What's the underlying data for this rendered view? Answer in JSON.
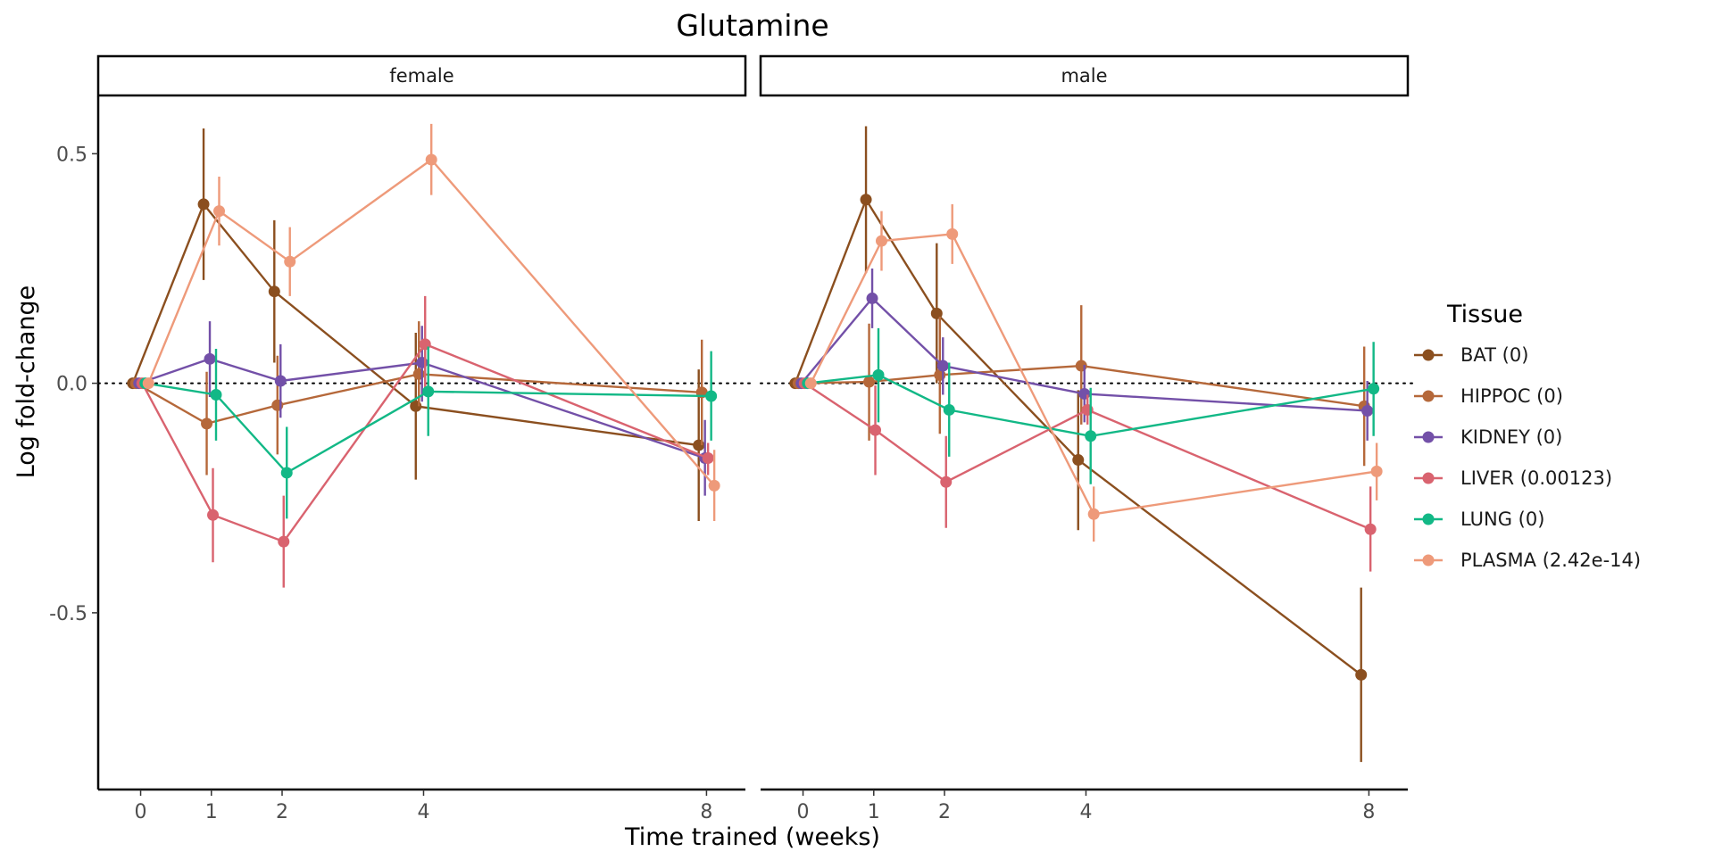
{
  "chart_data": {
    "type": "line",
    "title": "Glutamine",
    "xlabel": "Time trained (weeks)",
    "ylabel": "Log fold-change",
    "x_ticks": [
      0,
      1,
      2,
      4,
      8
    ],
    "y_ticks": [
      0.5,
      0.0,
      -0.5
    ],
    "y_tick_labels": [
      "0.5",
      "0.0",
      "-0.5"
    ],
    "ylim": [
      -0.885,
      0.625
    ],
    "xlim": [
      -0.6,
      8.55
    ],
    "reference_line": 0,
    "grid": false,
    "legend_title": "Tissue",
    "legend_position": "right",
    "facets": [
      {
        "label": "female",
        "series": [
          {
            "name": "BAT (0)",
            "color": "#8B4F1F",
            "x": [
              0,
              1,
              2,
              4,
              8
            ],
            "y": [
              0,
              0.39,
              0.2,
              -0.05,
              -0.135
            ],
            "lower": [
              0,
              0.225,
              0.045,
              -0.21,
              -0.3
            ],
            "upper": [
              0,
              0.555,
              0.355,
              0.11,
              0.03
            ]
          },
          {
            "name": "HIPPOC (0)",
            "color": "#B5683A",
            "x": [
              0,
              1,
              2,
              4,
              8
            ],
            "y": [
              0,
              -0.088,
              -0.048,
              0.02,
              -0.02
            ],
            "lower": [
              0,
              -0.2,
              -0.155,
              -0.05,
              -0.135
            ],
            "upper": [
              0,
              0.025,
              0.06,
              0.135,
              0.095
            ]
          },
          {
            "name": "KIDNEY (0)",
            "color": "#7350A8",
            "x": [
              0,
              1,
              2,
              4,
              8
            ],
            "y": [
              0,
              0.053,
              0.005,
              0.045,
              -0.163
            ],
            "lower": [
              0,
              -0.03,
              -0.075,
              -0.04,
              -0.245
            ],
            "upper": [
              0,
              0.135,
              0.085,
              0.125,
              -0.08
            ]
          },
          {
            "name": "LIVER (0.00123)",
            "color": "#D9636F",
            "x": [
              0,
              1,
              2,
              4,
              8
            ],
            "y": [
              0,
              -0.287,
              -0.345,
              0.085,
              -0.163
            ],
            "lower": [
              0,
              -0.39,
              -0.445,
              -0.02,
              -0.2
            ],
            "upper": [
              0,
              -0.185,
              -0.245,
              0.19,
              -0.13
            ]
          },
          {
            "name": "LUNG (0)",
            "color": "#12B886",
            "x": [
              0,
              1,
              2,
              4,
              8
            ],
            "y": [
              0,
              -0.025,
              -0.195,
              -0.018,
              -0.028
            ],
            "lower": [
              0,
              -0.125,
              -0.295,
              -0.115,
              -0.125
            ],
            "upper": [
              0,
              0.075,
              -0.095,
              0.08,
              0.07
            ]
          },
          {
            "name": "PLASMA (2.42e-14)",
            "color": "#EE9A7A",
            "x": [
              0,
              1,
              2,
              4,
              8
            ],
            "y": [
              0,
              0.375,
              0.265,
              0.487,
              -0.223
            ],
            "lower": [
              0,
              0.3,
              0.19,
              0.41,
              -0.3
            ],
            "upper": [
              0,
              0.45,
              0.34,
              0.565,
              -0.145
            ]
          }
        ]
      },
      {
        "label": "male",
        "series": [
          {
            "name": "BAT (0)",
            "color": "#8B4F1F",
            "x": [
              0,
              1,
              2,
              4,
              8
            ],
            "y": [
              0,
              0.4,
              0.152,
              -0.167,
              -0.635
            ],
            "lower": [
              0,
              0.24,
              0.0,
              -0.32,
              -0.825
            ],
            "upper": [
              0,
              0.56,
              0.305,
              -0.015,
              -0.445
            ]
          },
          {
            "name": "HIPPOC (0)",
            "color": "#B5683A",
            "x": [
              0,
              1,
              2,
              4,
              8
            ],
            "y": [
              0,
              0.003,
              0.018,
              0.038,
              -0.05
            ],
            "lower": [
              0,
              -0.125,
              -0.11,
              -0.09,
              -0.18
            ],
            "upper": [
              0,
              0.13,
              0.145,
              0.17,
              0.08
            ]
          },
          {
            "name": "KIDNEY (0)",
            "color": "#7350A8",
            "x": [
              0,
              1,
              2,
              4,
              8
            ],
            "y": [
              0,
              0.185,
              0.038,
              -0.023,
              -0.06
            ],
            "lower": [
              0,
              0.12,
              -0.025,
              -0.085,
              -0.125
            ],
            "upper": [
              0,
              0.25,
              0.1,
              0.04,
              0.005
            ]
          },
          {
            "name": "LIVER (0.00123)",
            "color": "#D9636F",
            "x": [
              0,
              1,
              2,
              4,
              8
            ],
            "y": [
              0,
              -0.102,
              -0.215,
              -0.058,
              -0.318
            ],
            "lower": [
              0,
              -0.2,
              -0.315,
              -0.09,
              -0.41
            ],
            "upper": [
              0,
              -0.005,
              -0.115,
              -0.025,
              -0.225
            ]
          },
          {
            "name": "LUNG (0)",
            "color": "#12B886",
            "x": [
              0,
              1,
              2,
              4,
              8
            ],
            "y": [
              0,
              0.018,
              -0.058,
              -0.115,
              -0.012
            ],
            "lower": [
              0,
              -0.085,
              -0.16,
              -0.22,
              -0.115
            ],
            "upper": [
              0,
              0.12,
              0.045,
              -0.01,
              0.09
            ]
          },
          {
            "name": "PLASMA (2.42e-14)",
            "color": "#EE9A7A",
            "x": [
              0,
              1,
              2,
              4,
              8
            ],
            "y": [
              0,
              0.31,
              0.325,
              -0.285,
              -0.192
            ],
            "lower": [
              0,
              0.245,
              0.26,
              -0.345,
              -0.255
            ],
            "upper": [
              0,
              0.375,
              0.39,
              -0.225,
              -0.13
            ]
          }
        ]
      }
    ]
  }
}
